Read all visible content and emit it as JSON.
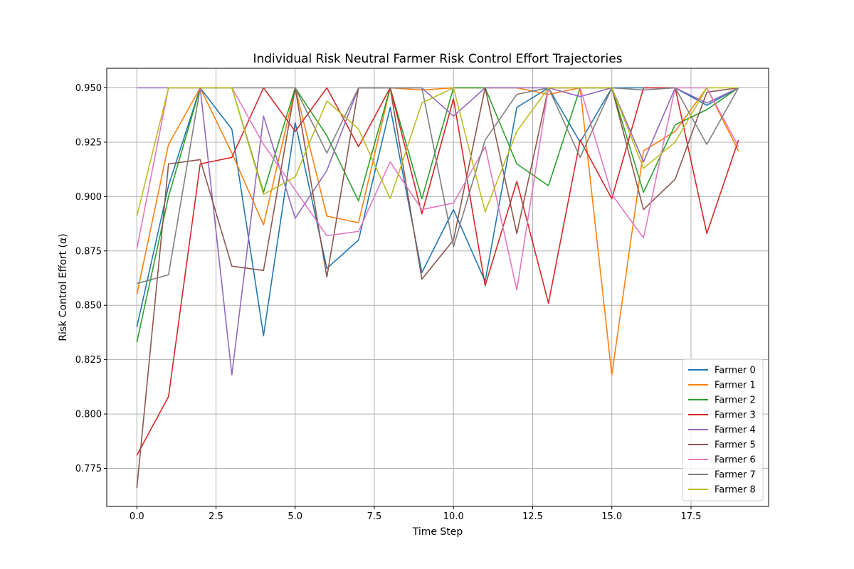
{
  "chart_data": {
    "type": "line",
    "title": "Individual Risk Neutral Farmer Risk Control Effort Trajectories",
    "xlabel": "Time Step",
    "ylabel": "Risk Control Effort (α)",
    "xlim": [
      -0.95,
      19.95
    ],
    "ylim": [
      0.7575,
      0.959
    ],
    "xticks": [
      0.0,
      2.5,
      5.0,
      7.5,
      10.0,
      12.5,
      15.0,
      17.5
    ],
    "xtick_labels": [
      "0.0",
      "2.5",
      "5.0",
      "7.5",
      "10.0",
      "12.5",
      "15.0",
      "17.5"
    ],
    "yticks": [
      0.775,
      0.8,
      0.825,
      0.85,
      0.875,
      0.9,
      0.925,
      0.95
    ],
    "ytick_labels": [
      "0.775",
      "0.800",
      "0.825",
      "0.850",
      "0.875",
      "0.900",
      "0.925",
      "0.950"
    ],
    "grid": true,
    "legend_position": "lower-right",
    "x": [
      0,
      1,
      2,
      3,
      4,
      5,
      6,
      7,
      8,
      9,
      10,
      11,
      12,
      13,
      14,
      15,
      16,
      17,
      18,
      19
    ],
    "series": [
      {
        "name": "Farmer 0",
        "color": "#1f77b4",
        "values": [
          0.84,
          0.905,
          0.95,
          0.931,
          0.836,
          0.934,
          0.867,
          0.88,
          0.941,
          0.865,
          0.894,
          0.861,
          0.941,
          0.95,
          0.925,
          0.95,
          0.95,
          0.95,
          0.942,
          0.95
        ]
      },
      {
        "name": "Farmer 1",
        "color": "#ff7f0e",
        "values": [
          0.855,
          0.924,
          0.95,
          0.92,
          0.887,
          0.95,
          0.891,
          0.888,
          0.95,
          0.949,
          0.95,
          0.95,
          0.95,
          0.947,
          0.95,
          0.818,
          0.921,
          0.93,
          0.95,
          0.921
        ]
      },
      {
        "name": "Farmer 2",
        "color": "#2ca02c",
        "values": [
          0.833,
          0.9,
          0.95,
          0.95,
          0.902,
          0.95,
          0.928,
          0.898,
          0.95,
          0.899,
          0.95,
          0.95,
          0.915,
          0.905,
          0.95,
          0.95,
          0.902,
          0.933,
          0.94,
          0.95
        ]
      },
      {
        "name": "Farmer 3",
        "color": "#d62728",
        "values": [
          0.781,
          0.808,
          0.915,
          0.918,
          0.95,
          0.93,
          0.95,
          0.923,
          0.95,
          0.892,
          0.945,
          0.859,
          0.907,
          0.851,
          0.926,
          0.899,
          0.95,
          0.95,
          0.883,
          0.926
        ]
      },
      {
        "name": "Farmer 4",
        "color": "#9467bd",
        "values": [
          0.95,
          0.95,
          0.95,
          0.818,
          0.937,
          0.89,
          0.912,
          0.95,
          0.95,
          0.95,
          0.937,
          0.95,
          0.95,
          0.95,
          0.946,
          0.95,
          0.916,
          0.95,
          0.943,
          0.95
        ]
      },
      {
        "name": "Farmer 5",
        "color": "#8c564b",
        "values": [
          0.766,
          0.915,
          0.917,
          0.868,
          0.866,
          0.95,
          0.863,
          0.95,
          0.95,
          0.862,
          0.88,
          0.95,
          0.883,
          0.95,
          0.95,
          0.95,
          0.894,
          0.908,
          0.948,
          0.95
        ]
      },
      {
        "name": "Farmer 6",
        "color": "#e377c2",
        "values": [
          0.876,
          0.95,
          0.95,
          0.95,
          0.924,
          0.903,
          0.882,
          0.884,
          0.916,
          0.894,
          0.897,
          0.923,
          0.857,
          0.95,
          0.95,
          0.901,
          0.881,
          0.95,
          0.95,
          0.923
        ]
      },
      {
        "name": "Farmer 7",
        "color": "#7f7f7f",
        "values": [
          0.86,
          0.864,
          0.95,
          0.95,
          0.95,
          0.95,
          0.92,
          0.95,
          0.95,
          0.95,
          0.877,
          0.926,
          0.947,
          0.95,
          0.918,
          0.95,
          0.949,
          0.95,
          0.924,
          0.95
        ]
      },
      {
        "name": "Farmer 8",
        "color": "#bcbd22",
        "values": [
          0.891,
          0.95,
          0.95,
          0.95,
          0.901,
          0.909,
          0.944,
          0.931,
          0.899,
          0.943,
          0.95,
          0.893,
          0.93,
          0.95,
          0.95,
          0.95,
          0.913,
          0.925,
          0.95,
          0.95
        ]
      }
    ]
  }
}
